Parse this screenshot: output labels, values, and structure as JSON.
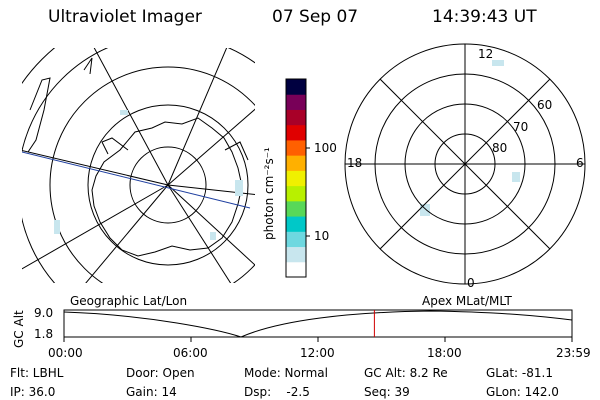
{
  "header": {
    "instrument": "Ultraviolet Imager",
    "date": "07 Sep 07",
    "time": "14:39:43 UT"
  },
  "colorbar": {
    "unit_label": "photon cm⁻²s⁻¹",
    "ticks": [
      "100",
      "10"
    ],
    "colors": [
      "#ffffff",
      "#c8e6ee",
      "#6ed8e0",
      "#00c8c8",
      "#58d858",
      "#b8f000",
      "#f0f000",
      "#ffb000",
      "#ff6000",
      "#e00000",
      "#a80028",
      "#780058",
      "#000040"
    ]
  },
  "left_panel": {
    "caption": "Geographic Lat/Lon"
  },
  "right_panel": {
    "caption": "Apex MLat/MLT",
    "mlt_labels": {
      "top": "12",
      "left": "18",
      "right": "6",
      "bottom": "0"
    },
    "lat_labels": [
      "60",
      "70",
      "80"
    ]
  },
  "altitude_plot": {
    "ylabel": "GC Alt",
    "y_ticks": [
      "9.0",
      "1.8"
    ],
    "x_ticks": [
      "00:00",
      "06:00",
      "12:00",
      "18:00",
      "23:59"
    ],
    "current_time_fraction": 0.611
  },
  "info": {
    "flt": "Flt: LBHL",
    "ip": "IP: 36.0",
    "door": "Door: Open",
    "gain": "Gain: 14",
    "mode": "Mode: Normal",
    "dsp": "Dsp:    -2.5",
    "gc_alt": "GC Alt: 8.2 Re",
    "seq": "Seq: 39",
    "glat": "GLat: -81.1",
    "glon": "GLon: 142.0"
  }
}
